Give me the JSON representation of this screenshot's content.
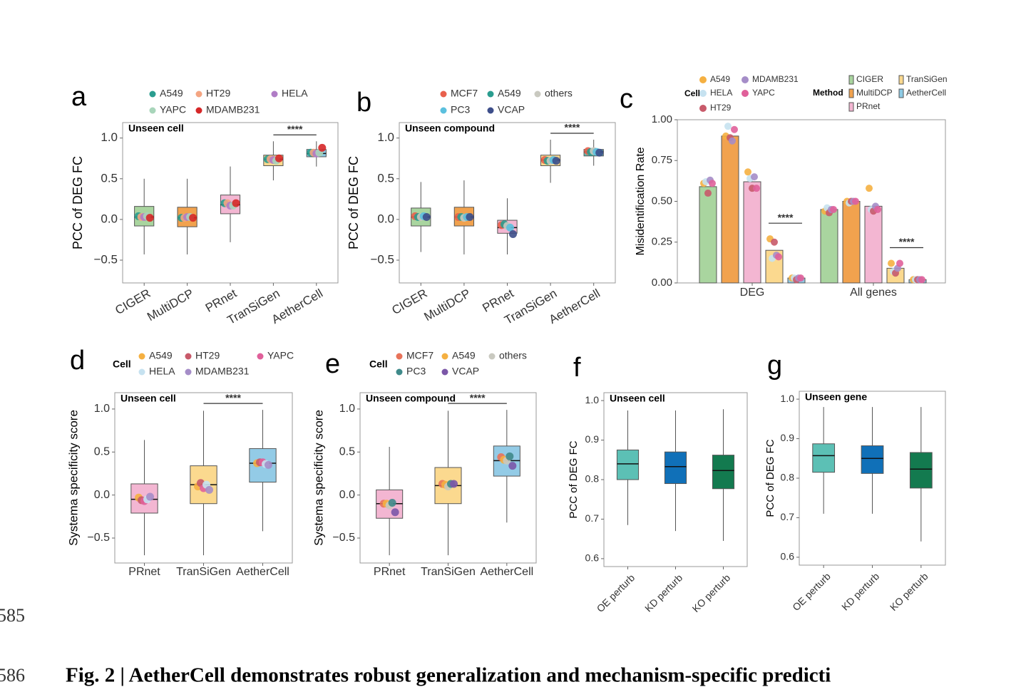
{
  "line_numbers": [
    "585",
    "586"
  ],
  "caption": "Fig. 2 | AetherCell demonstrates robust generalization and mechanism-specific predicti",
  "chart_data": [
    {
      "type": "box",
      "panel": "a",
      "inset_title": "Unseen cell",
      "ylabel": "PCC of DEG FC",
      "ylim": [
        -0.78,
        1.19
      ],
      "yticks": [
        {
          "value": -0.5,
          "label": "−0.5"
        },
        {
          "value": 0,
          "label": "0.0"
        },
        0.5,
        {
          "value": 1,
          "label": "1.0"
        }
      ],
      "categories": [
        "CIGER",
        "MultiDCP",
        "PRnet",
        "TranSiGen",
        "AetherCell"
      ],
      "colors": [
        "#a9d59f",
        "#f1a24e",
        "#f3b6d2",
        "#fbd98f",
        "#8ecbe6"
      ],
      "boxes": {
        "whislo": [
          -0.43,
          -0.43,
          -0.28,
          0.48,
          0.65
        ],
        "q1": [
          -0.08,
          -0.09,
          0.07,
          0.66,
          0.77
        ],
        "median": [
          0.03,
          0.02,
          0.18,
          0.74,
          0.81
        ],
        "q3": [
          0.16,
          0.15,
          0.3,
          0.79,
          0.86
        ],
        "whishi": [
          0.5,
          0.5,
          0.65,
          0.96,
          0.96
        ]
      },
      "series": [
        {
          "name": "A549",
          "color": "#2a9d8f",
          "values": [
            0.04,
            0.02,
            0.2,
            0.74,
            0.82
          ]
        },
        {
          "name": "HT29",
          "color": "#f4a582",
          "values": [
            0.03,
            0.02,
            0.2,
            0.74,
            0.82
          ]
        },
        {
          "name": "HELA",
          "color": "#b07cc6",
          "values": [
            0.03,
            0.03,
            0.17,
            0.73,
            0.81
          ]
        },
        {
          "name": "YAPC",
          "color": "#a8d5ba",
          "values": [
            0.04,
            0.03,
            0.17,
            0.72,
            0.82
          ]
        },
        {
          "name": "MDAMB231",
          "color": "#d62728",
          "values": [
            0.02,
            0.02,
            0.2,
            0.75,
            0.88
          ]
        }
      ],
      "significance": "****"
    },
    {
      "type": "box",
      "panel": "b",
      "inset_title": "Unseen compound",
      "ylabel": "PCC of DEG FC",
      "ylim": [
        -0.78,
        1.19
      ],
      "yticks": [
        {
          "value": -0.5,
          "label": "−0.5"
        },
        {
          "value": 0,
          "label": "0.0"
        },
        0.5,
        {
          "value": 1,
          "label": "1.0"
        }
      ],
      "categories": [
        "CIGER",
        "MultiDCP",
        "PRnet",
        "TranSiGen",
        "AetherCell"
      ],
      "colors": [
        "#a9d59f",
        "#f1a24e",
        "#f3b6d2",
        "#fbd98f",
        "#5bbfb5"
      ],
      "boxes": {
        "whislo": [
          -0.4,
          -0.43,
          -0.43,
          0.45,
          0.66
        ],
        "q1": [
          -0.08,
          -0.08,
          -0.17,
          0.66,
          0.78
        ],
        "median": [
          0.03,
          0.03,
          -0.1,
          0.73,
          0.83
        ],
        "q3": [
          0.14,
          0.15,
          -0.01,
          0.79,
          0.86
        ],
        "whishi": [
          0.46,
          0.48,
          0.26,
          0.98,
          0.98
        ]
      },
      "series": [
        {
          "name": "MCF7",
          "color": "#e8604c",
          "values": [
            0.04,
            0.03,
            -0.07,
            0.73,
            0.84
          ]
        },
        {
          "name": "A549",
          "color": "#2a9d8f",
          "values": [
            0.03,
            0.03,
            -0.06,
            0.72,
            0.83
          ]
        },
        {
          "name": "others",
          "color": "#c9c9c0",
          "values": [
            0.03,
            0.02,
            -0.08,
            0.72,
            0.84
          ]
        },
        {
          "name": "PC3",
          "color": "#5bc0de",
          "values": [
            0.04,
            0.03,
            -0.1,
            0.73,
            0.83
          ]
        },
        {
          "name": "VCAP",
          "color": "#3d4e8a",
          "values": [
            0.03,
            0.03,
            -0.18,
            0.72,
            0.82
          ]
        }
      ],
      "significance": "****"
    },
    {
      "type": "bar",
      "panel": "c",
      "ylabel": "Misidentification Rate",
      "ylim": [
        0,
        1
      ],
      "yticks": [
        {
          "value": 0,
          "label": "0.00"
        },
        {
          "value": 0.25,
          "label": "0.25"
        },
        {
          "value": 0.5,
          "label": "0.50"
        },
        {
          "value": 0.75,
          "label": "0.75"
        },
        {
          "value": 1,
          "label": "1.00"
        }
      ],
      "categories": [
        "DEG",
        "All genes"
      ],
      "legend_titles": [
        "Cell",
        "Method"
      ],
      "series": [
        {
          "name": "CIGER",
          "color": "#a9d59f",
          "values": [
            0.59,
            0.45
          ]
        },
        {
          "name": "MultiDCP",
          "color": "#f1a24e",
          "values": [
            0.9,
            0.5
          ]
        },
        {
          "name": "PRnet",
          "color": "#f3b6d2",
          "values": [
            0.62,
            0.47
          ]
        },
        {
          "name": "TranSiGen",
          "color": "#fbd98f",
          "values": [
            0.2,
            0.09
          ]
        },
        {
          "name": "AetherCell",
          "color": "#8ecbe6",
          "values": [
            0.03,
            0.02
          ]
        }
      ],
      "points": [
        {
          "name": "A549",
          "color": "#f5b041",
          "values": [
            [
              0.61,
              0.9,
              0.68,
              0.27,
              0.03
            ],
            [
              0.44,
              0.5,
              0.58,
              0.12,
              0.02
            ]
          ]
        },
        {
          "name": "HELA",
          "color": "#c6e2f0",
          "values": [
            [
              0.62,
              0.96,
              0.64,
              0.15,
              0.03
            ],
            [
              0.46,
              0.49,
              0.45,
              0.07,
              0.02
            ]
          ]
        },
        {
          "name": "HT29",
          "color": "#c85a6a",
          "values": [
            [
              0.55,
              0.89,
              0.58,
              0.25,
              0.02
            ],
            [
              0.43,
              0.5,
              0.44,
              0.06,
              0.02
            ]
          ]
        },
        {
          "name": "MDAMB231",
          "color": "#a58dc8",
          "values": [
            [
              0.63,
              0.87,
              0.65,
              0.17,
              0.03
            ],
            [
              0.45,
              0.5,
              0.47,
              0.09,
              0.02
            ]
          ]
        },
        {
          "name": "YAPC",
          "color": "#e0609a",
          "values": [
            [
              0.61,
              0.94,
              0.58,
              0.16,
              0.03
            ],
            [
              0.45,
              0.5,
              0.45,
              0.12,
              0.02
            ]
          ]
        }
      ],
      "significance": "****"
    },
    {
      "type": "box",
      "panel": "d",
      "inset_title": "Unseen cell",
      "ylabel": "Systema specificity score",
      "legend_title": "Cell",
      "ylim": [
        -0.79,
        1.19
      ],
      "yticks": [
        {
          "value": -0.5,
          "label": "−0.5"
        },
        {
          "value": 0,
          "label": "0.0"
        },
        0.5,
        {
          "value": 1,
          "label": "1.0"
        }
      ],
      "categories": [
        "PRnet",
        "TranSiGen",
        "AetherCell"
      ],
      "colors": [
        "#f3b6d2",
        "#fbd98f",
        "#93cbe6"
      ],
      "boxes": {
        "whislo": [
          -0.7,
          -0.7,
          -0.42
        ],
        "q1": [
          -0.21,
          -0.1,
          0.15
        ],
        "median": [
          -0.05,
          0.12,
          0.37
        ],
        "q3": [
          0.13,
          0.34,
          0.54
        ],
        "whishi": [
          0.64,
          0.98,
          0.99
        ]
      },
      "series": [
        {
          "name": "A549",
          "color": "#f5b041",
          "values": [
            -0.03,
            0.1,
            0.37
          ]
        },
        {
          "name": "HT29",
          "color": "#c85a6a",
          "values": [
            -0.06,
            0.14,
            0.38
          ]
        },
        {
          "name": "YAPC",
          "color": "#e0609a",
          "values": [
            -0.07,
            0.08,
            0.38
          ]
        },
        {
          "name": "HELA",
          "color": "#c6e2f0",
          "values": [
            -0.05,
            0.12,
            0.36
          ]
        },
        {
          "name": "MDAMB231",
          "color": "#a58dc8",
          "values": [
            -0.02,
            0.06,
            0.35
          ]
        }
      ],
      "significance": "****"
    },
    {
      "type": "box",
      "panel": "e",
      "inset_title": "Unseen compound",
      "ylabel": "Systema specificity score",
      "legend_title": "Cell",
      "ylim": [
        -0.79,
        1.19
      ],
      "yticks": [
        {
          "value": -0.5,
          "label": "−0.5"
        },
        {
          "value": 0,
          "label": "0.0"
        },
        0.5,
        {
          "value": 1,
          "label": "1.0"
        }
      ],
      "categories": [
        "PRnet",
        "TranSiGen",
        "AetherCell"
      ],
      "colors": [
        "#f3b6d2",
        "#fbd98f",
        "#93cbe6"
      ],
      "boxes": {
        "whislo": [
          -0.7,
          -0.7,
          -0.32
        ],
        "q1": [
          -0.27,
          -0.1,
          0.22
        ],
        "median": [
          -0.1,
          0.11,
          0.4
        ],
        "q3": [
          0.06,
          0.32,
          0.57
        ],
        "whishi": [
          0.56,
          0.98,
          0.99
        ]
      },
      "series": [
        {
          "name": "MCF7",
          "color": "#e8735a",
          "values": [
            -0.1,
            0.13,
            0.44
          ]
        },
        {
          "name": "A549",
          "color": "#f5b041",
          "values": [
            -0.1,
            0.12,
            0.41
          ]
        },
        {
          "name": "others",
          "color": "#c9c9c0",
          "values": [
            -0.12,
            0.1,
            0.4
          ]
        },
        {
          "name": "PC3",
          "color": "#3f8a8a",
          "values": [
            -0.09,
            0.13,
            0.45
          ]
        },
        {
          "name": "VCAP",
          "color": "#7b57a8",
          "values": [
            -0.2,
            0.13,
            0.34
          ]
        }
      ],
      "significance": "****"
    },
    {
      "type": "box",
      "panel": "f",
      "inset_title": "Unseen cell",
      "ylabel": "PCC of DEG FC",
      "ylim": [
        0.58,
        1.02
      ],
      "yticks": [
        0.6,
        0.7,
        0.8,
        0.9,
        {
          "value": 1,
          "label": "1.0"
        }
      ],
      "categories": [
        "OE perturb",
        "KD perturb",
        "KO perturb"
      ],
      "colors": [
        "#5cc0b5",
        "#1070b8",
        "#137a4f"
      ],
      "boxes": {
        "whislo": [
          0.685,
          0.67,
          0.645
        ],
        "q1": [
          0.8,
          0.79,
          0.777
        ],
        "median": [
          0.84,
          0.833,
          0.823
        ],
        "q3": [
          0.875,
          0.87,
          0.862
        ],
        "whishi": [
          0.975,
          0.975,
          0.978
        ]
      }
    },
    {
      "type": "box",
      "panel": "g",
      "inset_title": "Unseen gene",
      "ylabel": "PCC of DEG FC",
      "ylim": [
        0.58,
        1.02
      ],
      "yticks": [
        0.6,
        0.7,
        0.8,
        0.9,
        {
          "value": 1,
          "label": "1.0"
        }
      ],
      "categories": [
        "OE perturb",
        "KD perturb",
        "KO perturb"
      ],
      "colors": [
        "#5cc0b5",
        "#1070b8",
        "#137a4f"
      ],
      "boxes": {
        "whislo": [
          0.71,
          0.71,
          0.64
        ],
        "q1": [
          0.815,
          0.812,
          0.775
        ],
        "median": [
          0.857,
          0.85,
          0.823
        ],
        "q3": [
          0.887,
          0.882,
          0.865
        ],
        "whishi": [
          0.98,
          0.98,
          0.98
        ]
      }
    }
  ]
}
